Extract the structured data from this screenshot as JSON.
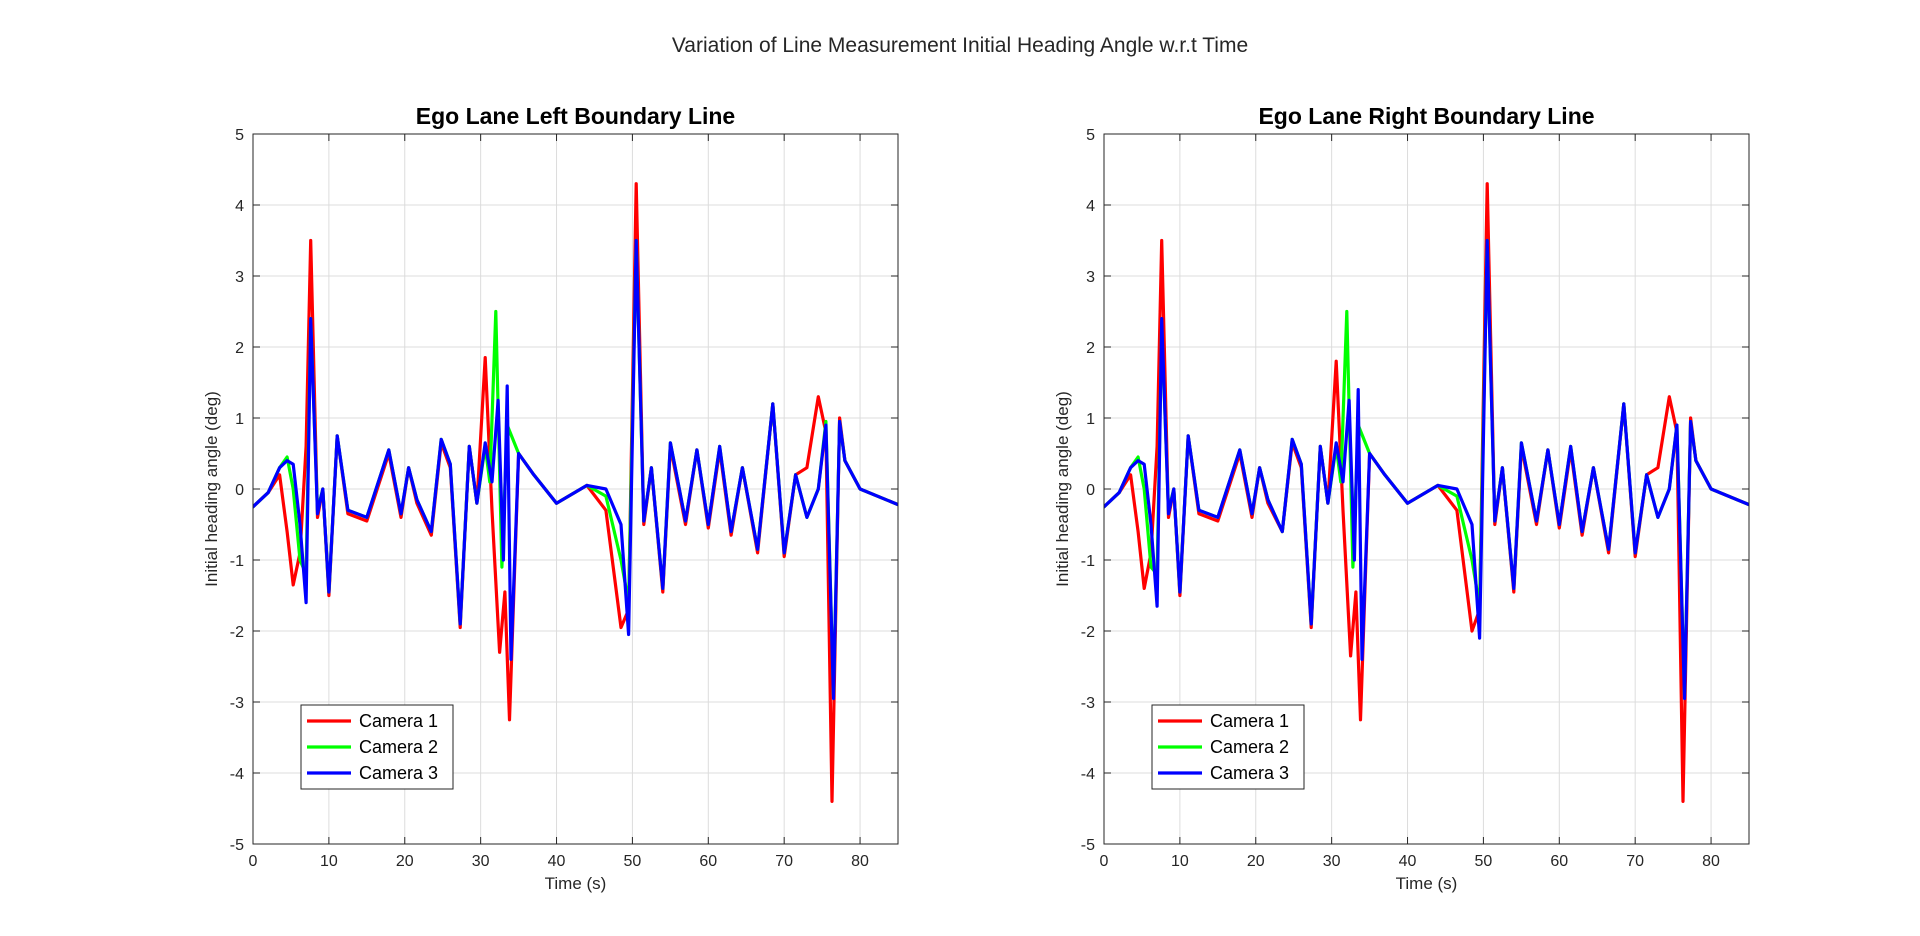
{
  "figure": {
    "suptitle": "Variation of Line Measurement Initial Heading Angle w.r.t Time"
  },
  "chart_data": [
    {
      "type": "line",
      "title": "Ego Lane Left Boundary Line",
      "xlabel": "Time (s)",
      "ylabel": "Initial heading angle (deg)",
      "xlim": [
        0,
        85
      ],
      "ylim": [
        -5,
        5
      ],
      "xticks": [
        0,
        10,
        20,
        30,
        40,
        50,
        60,
        70,
        80
      ],
      "yticks": [
        5,
        4,
        3,
        2,
        1,
        0,
        -1,
        -2,
        -3,
        -4,
        -5
      ],
      "grid": true,
      "legend_location": "bottom-left",
      "series": [
        {
          "name": "Camera 1",
          "color": "#ff0000",
          "x": [
            0,
            2,
            3.5,
            4.5,
            5.3,
            6.2,
            7.0,
            7.6,
            8.5,
            9.2,
            10.0,
            11.1,
            12.5,
            15.0,
            17.9,
            19.5,
            20.5,
            21.6,
            23.5,
            24.8,
            26.0,
            27.3,
            28.5,
            29.5,
            30.6,
            31.5,
            32.5,
            33.2,
            33.8,
            35.0,
            37.0,
            40.0,
            44.0,
            46.5,
            48.5,
            49.5,
            50.5,
            51.5,
            52.5,
            54.0,
            55.0,
            57.0,
            58.5,
            60.0,
            61.5,
            63.0,
            64.5,
            66.5,
            68.5,
            70.0,
            71.5,
            73.0,
            74.5,
            75.5,
            76.3,
            77.3,
            78.0,
            80.0,
            85.0
          ],
          "y": [
            -0.25,
            -0.05,
            0.2,
            -0.6,
            -1.35,
            -0.9,
            0.6,
            3.5,
            -0.4,
            0.0,
            -1.5,
            0.75,
            -0.35,
            -0.45,
            0.5,
            -0.4,
            0.3,
            -0.2,
            -0.65,
            0.65,
            0.3,
            -1.95,
            0.6,
            -0.2,
            1.85,
            -0.3,
            -2.3,
            -1.45,
            -3.25,
            0.5,
            0.2,
            -0.2,
            0.05,
            -0.3,
            -1.95,
            -1.7,
            4.3,
            -0.5,
            0.3,
            -1.45,
            0.6,
            -0.5,
            0.55,
            -0.55,
            0.55,
            -0.65,
            0.3,
            -0.9,
            1.2,
            -0.95,
            0.2,
            0.3,
            1.3,
            0.8,
            -4.4,
            1.0,
            0.4,
            0.0,
            -0.22
          ]
        },
        {
          "name": "Camera 2",
          "color": "#00ff00",
          "x": [
            0,
            2,
            3.5,
            4.5,
            5.3,
            6.2,
            7.0,
            7.6,
            8.5,
            9.2,
            10.0,
            11.1,
            12.5,
            15.0,
            17.9,
            19.5,
            20.5,
            21.6,
            23.5,
            24.8,
            26.0,
            27.3,
            28.5,
            29.5,
            30.6,
            31.2,
            32.0,
            32.8,
            33.5,
            35.0,
            37.0,
            40.0,
            44.0,
            46.5,
            48.5,
            49.5,
            50.5,
            51.5,
            52.5,
            54.0,
            55.0,
            57.0,
            58.5,
            60.0,
            61.5,
            63.0,
            64.5,
            66.5,
            68.5,
            70.0,
            71.5,
            73.0,
            74.5,
            75.5,
            76.5,
            77.3,
            78.0,
            80.0,
            85.0
          ],
          "y": [
            -0.25,
            -0.05,
            0.3,
            0.45,
            0.0,
            -1.0,
            -1.2,
            2.4,
            -0.3,
            0.0,
            -1.45,
            0.75,
            -0.3,
            -0.4,
            0.55,
            -0.35,
            0.3,
            -0.15,
            -0.6,
            0.7,
            0.35,
            -1.9,
            0.6,
            -0.2,
            0.6,
            0.1,
            2.5,
            -1.1,
            0.9,
            0.5,
            0.2,
            -0.2,
            0.05,
            -0.1,
            -1.0,
            -1.6,
            3.5,
            -0.45,
            0.3,
            -1.4,
            0.65,
            -0.45,
            0.55,
            -0.5,
            0.6,
            -0.6,
            0.3,
            -0.85,
            1.2,
            -0.9,
            0.2,
            -0.4,
            0.0,
            0.95,
            -2.9,
            0.95,
            0.4,
            0.0,
            -0.22
          ]
        },
        {
          "name": "Camera 3",
          "color": "#0000ff",
          "x": [
            0,
            2,
            3.5,
            4.5,
            5.3,
            6.2,
            7.0,
            7.6,
            8.5,
            9.2,
            10.0,
            11.1,
            12.5,
            15.0,
            17.9,
            19.5,
            20.5,
            21.6,
            23.5,
            24.8,
            26.0,
            27.3,
            28.5,
            29.5,
            30.6,
            31.5,
            32.3,
            33.0,
            33.5,
            34.0,
            35.0,
            37.0,
            40.0,
            44.0,
            46.5,
            48.5,
            49.5,
            50.5,
            51.5,
            52.5,
            54.0,
            55.0,
            57.0,
            58.5,
            60.0,
            61.5,
            63.0,
            64.5,
            66.5,
            68.5,
            70.0,
            71.5,
            73.0,
            74.5,
            75.5,
            76.5,
            77.3,
            78.0,
            80.0,
            85.0
          ],
          "y": [
            -0.25,
            -0.05,
            0.3,
            0.4,
            0.35,
            -0.5,
            -1.6,
            2.4,
            -0.35,
            0.0,
            -1.45,
            0.75,
            -0.3,
            -0.4,
            0.55,
            -0.35,
            0.3,
            -0.15,
            -0.6,
            0.7,
            0.35,
            -1.9,
            0.6,
            -0.2,
            0.65,
            0.1,
            1.25,
            -1.0,
            1.45,
            -2.4,
            0.5,
            0.2,
            -0.2,
            0.05,
            0.0,
            -0.5,
            -2.05,
            3.5,
            -0.45,
            0.3,
            -1.4,
            0.65,
            -0.45,
            0.55,
            -0.5,
            0.6,
            -0.6,
            0.3,
            -0.85,
            1.2,
            -0.9,
            0.2,
            -0.4,
            0.0,
            0.9,
            -2.95,
            0.95,
            0.4,
            0.0,
            -0.22
          ]
        }
      ]
    },
    {
      "type": "line",
      "title": "Ego Lane Right Boundary Line",
      "xlabel": "Time (s)",
      "ylabel": "Initial heading angle (deg)",
      "xlim": [
        0,
        85
      ],
      "ylim": [
        -5,
        5
      ],
      "xticks": [
        0,
        10,
        20,
        30,
        40,
        50,
        60,
        70,
        80
      ],
      "yticks": [
        5,
        4,
        3,
        2,
        1,
        0,
        -1,
        -2,
        -3,
        -4,
        -5
      ],
      "grid": true,
      "legend_location": "bottom-left",
      "series": [
        {
          "name": "Camera 1",
          "color": "#ff0000",
          "x": [
            0,
            2,
            3.5,
            4.5,
            5.3,
            6.2,
            7.0,
            7.6,
            8.5,
            9.2,
            10.0,
            11.1,
            12.5,
            15.0,
            17.9,
            19.5,
            20.5,
            21.6,
            23.5,
            24.8,
            26.0,
            27.3,
            28.5,
            29.5,
            30.6,
            31.5,
            32.5,
            33.2,
            33.8,
            35.0,
            37.0,
            40.0,
            44.0,
            46.5,
            48.5,
            49.5,
            50.5,
            51.5,
            52.5,
            54.0,
            55.0,
            57.0,
            58.5,
            60.0,
            61.5,
            63.0,
            64.5,
            66.5,
            68.5,
            70.0,
            71.5,
            73.0,
            74.5,
            75.5,
            76.3,
            77.3,
            78.0,
            80.0,
            85.0
          ],
          "y": [
            -0.25,
            -0.05,
            0.2,
            -0.6,
            -1.4,
            -0.9,
            0.6,
            3.5,
            -0.4,
            0.0,
            -1.5,
            0.75,
            -0.35,
            -0.45,
            0.5,
            -0.4,
            0.3,
            -0.2,
            -0.6,
            0.65,
            0.3,
            -1.95,
            0.6,
            -0.2,
            1.8,
            -0.3,
            -2.35,
            -1.45,
            -3.25,
            0.5,
            0.2,
            -0.2,
            0.05,
            -0.3,
            -2.0,
            -1.7,
            4.3,
            -0.5,
            0.3,
            -1.45,
            0.6,
            -0.5,
            0.55,
            -0.55,
            0.55,
            -0.65,
            0.3,
            -0.9,
            1.2,
            -0.95,
            0.2,
            0.3,
            1.3,
            0.8,
            -4.4,
            1.0,
            0.4,
            0.0,
            -0.22
          ]
        },
        {
          "name": "Camera 2",
          "color": "#00ff00",
          "x": [
            0,
            2,
            3.5,
            4.5,
            5.3,
            6.2,
            7.0,
            7.6,
            8.5,
            9.2,
            10.0,
            11.1,
            12.5,
            15.0,
            17.9,
            19.5,
            20.5,
            21.6,
            23.5,
            24.8,
            26.0,
            27.3,
            28.5,
            29.5,
            30.6,
            31.2,
            32.0,
            32.8,
            33.5,
            35.0,
            37.0,
            40.0,
            44.0,
            46.5,
            48.5,
            49.5,
            50.5,
            51.5,
            52.5,
            54.0,
            55.0,
            57.0,
            58.5,
            60.0,
            61.5,
            63.0,
            64.5,
            66.5,
            68.5,
            70.0,
            71.5,
            73.0,
            74.5,
            75.5,
            76.5,
            77.3,
            78.0,
            80.0,
            85.0
          ],
          "y": [
            -0.25,
            -0.05,
            0.3,
            0.45,
            0.0,
            -1.1,
            -1.2,
            2.3,
            -0.3,
            0.0,
            -1.45,
            0.75,
            -0.3,
            -0.4,
            0.55,
            -0.35,
            0.3,
            -0.15,
            -0.6,
            0.7,
            0.35,
            -1.9,
            0.6,
            -0.2,
            0.6,
            0.1,
            2.5,
            -1.1,
            0.9,
            0.5,
            0.2,
            -0.2,
            0.05,
            -0.1,
            -1.0,
            -1.65,
            3.5,
            -0.45,
            0.3,
            -1.4,
            0.65,
            -0.45,
            0.55,
            -0.5,
            0.6,
            -0.6,
            0.3,
            -0.85,
            1.2,
            -0.9,
            0.2,
            -0.4,
            0.0,
            0.9,
            -2.9,
            0.95,
            0.4,
            0.0,
            -0.22
          ]
        },
        {
          "name": "Camera 3",
          "color": "#0000ff",
          "x": [
            0,
            2,
            3.5,
            4.5,
            5.3,
            6.2,
            7.0,
            7.6,
            8.5,
            9.2,
            10.0,
            11.1,
            12.5,
            15.0,
            17.9,
            19.5,
            20.5,
            21.6,
            23.5,
            24.8,
            26.0,
            27.3,
            28.5,
            29.5,
            30.6,
            31.5,
            32.3,
            33.0,
            33.5,
            34.0,
            35.0,
            37.0,
            40.0,
            44.0,
            46.5,
            48.5,
            49.5,
            50.5,
            51.5,
            52.5,
            54.0,
            55.0,
            57.0,
            58.5,
            60.0,
            61.5,
            63.0,
            64.5,
            66.5,
            68.5,
            70.0,
            71.5,
            73.0,
            74.5,
            75.5,
            76.5,
            77.3,
            78.0,
            80.0,
            85.0
          ],
          "y": [
            -0.25,
            -0.05,
            0.3,
            0.4,
            0.35,
            -0.5,
            -1.65,
            2.4,
            -0.35,
            0.0,
            -1.45,
            0.75,
            -0.3,
            -0.4,
            0.55,
            -0.35,
            0.3,
            -0.15,
            -0.6,
            0.7,
            0.35,
            -1.9,
            0.6,
            -0.2,
            0.65,
            0.1,
            1.25,
            -1.0,
            1.4,
            -2.4,
            0.5,
            0.2,
            -0.2,
            0.05,
            0.0,
            -0.5,
            -2.1,
            3.5,
            -0.45,
            0.3,
            -1.4,
            0.65,
            -0.45,
            0.55,
            -0.5,
            0.6,
            -0.6,
            0.3,
            -0.85,
            1.2,
            -0.9,
            0.2,
            -0.4,
            0.0,
            0.9,
            -2.95,
            0.95,
            0.4,
            0.0,
            -0.22
          ]
        }
      ]
    }
  ]
}
